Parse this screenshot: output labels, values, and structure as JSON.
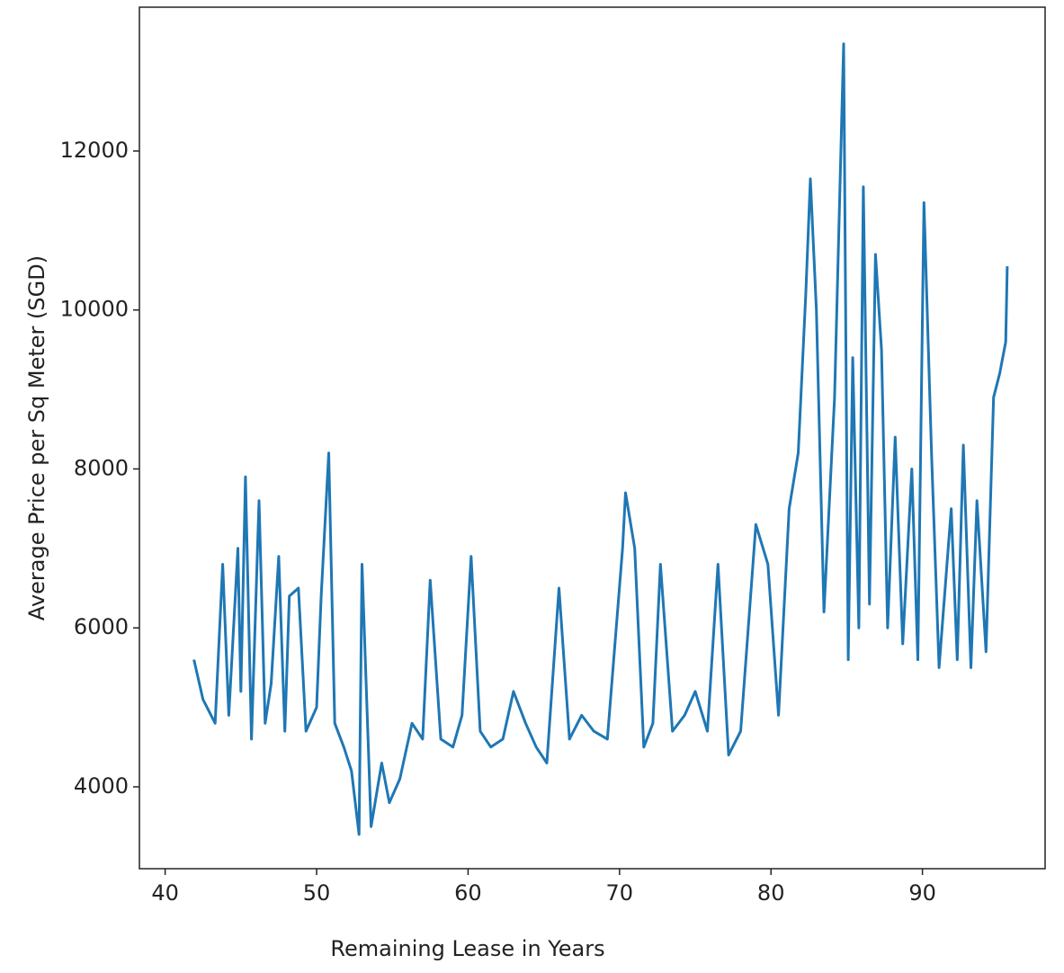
{
  "chart_data": {
    "type": "line",
    "x_label": "Remaining Lease in Years",
    "y_label": "Average Price per Sq Meter (SGD)",
    "x": [
      41.9,
      42.5,
      43.3,
      43.8,
      44.2,
      44.8,
      45.0,
      45.3,
      45.7,
      46.2,
      46.6,
      47.0,
      47.5,
      47.9,
      48.2,
      48.8,
      49.3,
      50.0,
      50.3,
      50.8,
      51.2,
      51.8,
      52.3,
      52.8,
      53.0,
      53.6,
      54.3,
      54.8,
      55.5,
      56.3,
      57.0,
      57.5,
      58.2,
      59.0,
      59.6,
      60.2,
      60.8,
      61.5,
      62.3,
      63.0,
      63.8,
      64.5,
      65.2,
      66.0,
      66.7,
      67.5,
      68.3,
      69.2,
      70.2,
      70.4,
      71.0,
      71.6,
      72.2,
      72.7,
      73.5,
      74.3,
      75.0,
      75.8,
      76.5,
      77.2,
      78.0,
      79.0,
      79.8,
      80.5,
      81.2,
      81.8,
      82.3,
      82.6,
      83.0,
      83.5,
      84.2,
      84.8,
      85.1,
      85.4,
      85.8,
      86.1,
      86.5,
      86.9,
      87.3,
      87.7,
      88.2,
      88.7,
      89.3,
      89.7,
      90.1,
      90.6,
      91.1,
      91.9,
      92.3,
      92.7,
      93.2,
      93.6,
      94.2,
      94.7,
      95.1,
      95.5,
      95.6
    ],
    "series": [
      {
        "color": "#1f77b4",
        "values": [
          5600,
          5100,
          4800,
          6800,
          4900,
          7000,
          5200,
          7900,
          4600,
          7600,
          4800,
          5300,
          6900,
          4700,
          6400,
          6500,
          4700,
          5000,
          6400,
          8200,
          4800,
          4500,
          4200,
          3400,
          6800,
          3500,
          4300,
          3800,
          4100,
          4800,
          4600,
          6600,
          4600,
          4500,
          4900,
          6900,
          4700,
          4500,
          4600,
          5200,
          4800,
          4500,
          4300,
          6500,
          4600,
          4900,
          4700,
          4600,
          7000,
          7700,
          7000,
          4500,
          4800,
          6800,
          4700,
          4900,
          5200,
          4700,
          6800,
          4400,
          4700,
          7300,
          6800,
          4900,
          7500,
          8200,
          10200,
          11650,
          10000,
          6200,
          8900,
          13350,
          5600,
          9400,
          6000,
          11550,
          6300,
          10700,
          9500,
          6000,
          8400,
          5800,
          8000,
          5600,
          11350,
          8200,
          5500,
          7500,
          5600,
          8300,
          5500,
          7600,
          5700,
          8900,
          9200,
          9600,
          10550
        ]
      }
    ],
    "xlim": [
      38.3,
      98.1
    ],
    "xticks": [
      40,
      50,
      60,
      70,
      80,
      90
    ],
    "ylim": [
      2970,
      13810
    ],
    "yticks": [
      4000,
      6000,
      8000,
      10000,
      12000
    ]
  }
}
